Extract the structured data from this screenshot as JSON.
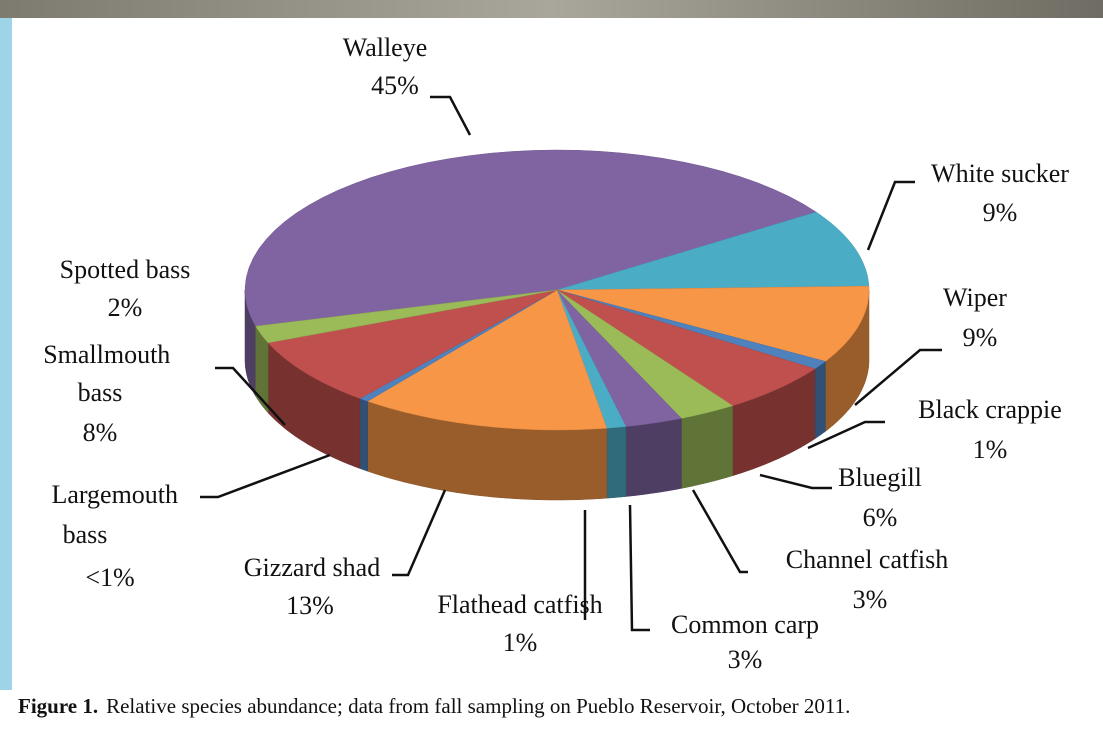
{
  "chart_data": {
    "type": "pie3d",
    "categories": [
      "Walleye",
      "White sucker",
      "Wiper",
      "Black crappie",
      "Bluegill",
      "Channel catfish",
      "Common carp",
      "Flathead catfish",
      "Gizzard shad",
      "Largemouth bass",
      "Smallmouth bass",
      "Spotted bass"
    ],
    "values": [
      45,
      9,
      9,
      1,
      6,
      3,
      3,
      1,
      13,
      0.5,
      8,
      2
    ],
    "value_labels": [
      "45%",
      "9%",
      "9%",
      "1%",
      "6%",
      "3%",
      "3%",
      "1%",
      "13%",
      "<1%",
      "8%",
      "2%"
    ],
    "colors": [
      "#8064a2",
      "#4bacc6",
      "#f79646",
      "#4f81bd",
      "#c0504d",
      "#9bbb59",
      "#8064a2",
      "#4bacc6",
      "#f79646",
      "#4f81bd",
      "#c0504d",
      "#9bbb59"
    ]
  },
  "caption": {
    "label": "Figure 1.",
    "text": "Relative species abundance; data from fall sampling on Pueblo Reservoir, October 2011."
  }
}
